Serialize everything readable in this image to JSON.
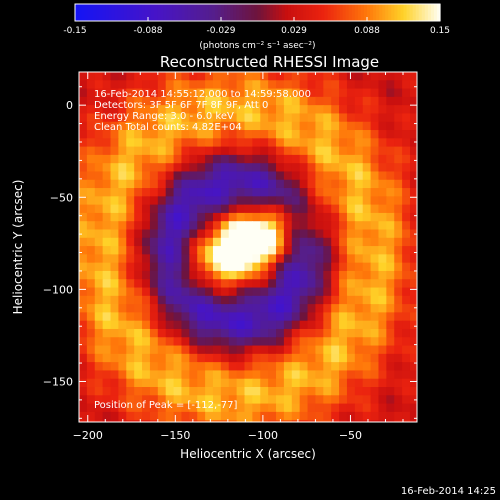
{
  "chart_data": {
    "type": "heatmap",
    "title": "Reconstructed RHESSI Image",
    "xlabel": "Heliocentric X (arcsec)",
    "ylabel": "Heliocentric Y (arcsec)",
    "xlim": [
      -205,
      -12
    ],
    "ylim": [
      -172,
      18
    ],
    "x_ticks": [
      -200,
      -150,
      -100,
      -50
    ],
    "y_ticks": [
      0,
      -50,
      -100,
      -150
    ],
    "colorbar": {
      "label": "(photons cm⁻² s⁻¹ asec⁻²)",
      "min": -0.15,
      "max": 0.15,
      "tick_labels": [
        "-0.15",
        "-0.088",
        "-0.029",
        "0.029",
        "0.088",
        "0.15"
      ],
      "colormap": "rainbow-blue-purple-red-yellow-white"
    },
    "annotations": [
      "16-Feb-2014 14:55:12.000 to 14:59:58.000",
      "Detectors: 3F 5F 6F 7F 8F 9F, Att 0",
      "Energy Range: 3.0 - 6.0 keV",
      "Clean     Total counts: 4.82E+04"
    ],
    "peak_label": "Position of Peak = [-112,-77]",
    "peak": {
      "x": -112,
      "y": -77,
      "value": 0.15
    },
    "components": [
      {
        "kind": "source",
        "x": -112,
        "y": -77,
        "sx": 22,
        "sy": 12,
        "angle_deg": 25,
        "amp": 0.17
      },
      {
        "kind": "source",
        "x": -95,
        "y": -67,
        "sx": 18,
        "sy": 11,
        "angle_deg": 20,
        "amp": 0.05
      },
      {
        "kind": "ring",
        "x": -115,
        "y": -80,
        "r": 78,
        "w": 18,
        "amp": 0.08
      },
      {
        "kind": "ring",
        "x": -115,
        "y": -80,
        "r": 38,
        "w": 12,
        "amp": -0.11
      },
      {
        "kind": "background",
        "amp": 0.03
      }
    ]
  },
  "footer": {
    "timestamp": "16-Feb-2014 14:25"
  }
}
